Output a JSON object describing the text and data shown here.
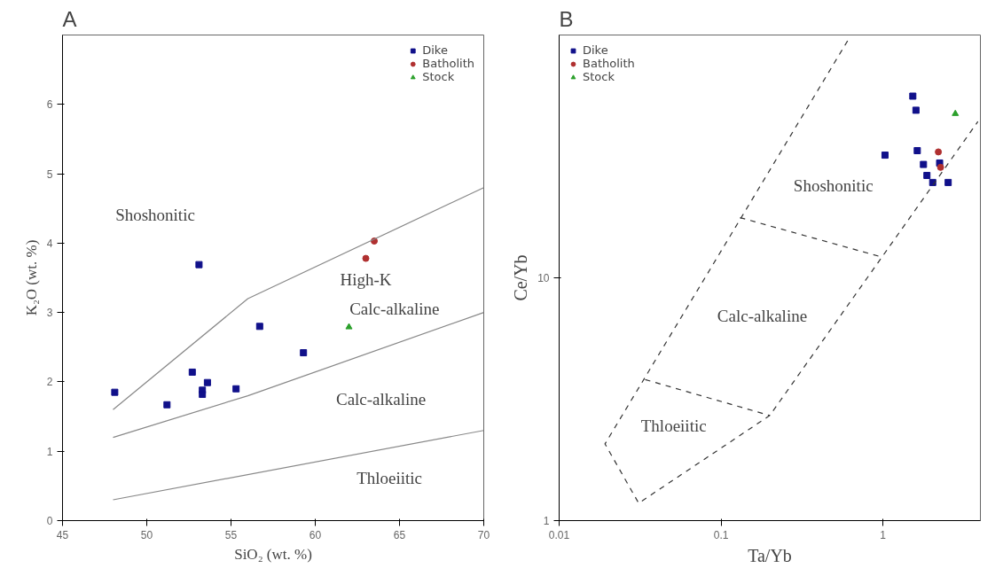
{
  "chart_data": [
    {
      "type": "scatter",
      "title": "A",
      "xlabel": "SiO₂ (wt. %)",
      "ylabel": "K₂O (wt. %)",
      "xlim": [
        45,
        70
      ],
      "ylim": [
        0,
        7
      ],
      "xticks": [
        45,
        50,
        55,
        60,
        65,
        70
      ],
      "yticks": [
        0,
        1,
        2,
        3,
        4,
        5,
        6
      ],
      "grid": false,
      "legend": "top right",
      "series": [
        {
          "name": "Dike",
          "color": "#10108a",
          "marker": "square",
          "x": [
            48.1,
            53.1,
            56.7,
            59.3,
            52.7,
            53.6,
            53.3,
            53.3,
            55.3,
            51.2
          ],
          "values": [
            1.85,
            3.69,
            2.8,
            2.42,
            2.14,
            1.99,
            1.88,
            1.82,
            1.9,
            1.67
          ]
        },
        {
          "name": "Batholith",
          "color": "#b03030",
          "marker": "circle",
          "x": [
            63.5,
            63.0
          ],
          "values": [
            4.03,
            3.78
          ]
        },
        {
          "name": "Stock",
          "color": "#2ca02c",
          "marker": "triangle",
          "x": [
            62.0
          ],
          "values": [
            2.79
          ]
        },
        {
          "type": "line",
          "color": "#888888",
          "line_style": "solid",
          "x": [
            48,
            56,
            70
          ],
          "values": [
            1.6,
            3.2,
            4.8
          ]
        },
        {
          "type": "line",
          "color": "#888888",
          "line_style": "solid",
          "x": [
            48,
            56,
            70
          ],
          "values": [
            1.2,
            1.8,
            3.0
          ]
        },
        {
          "type": "line",
          "color": "#888888",
          "line_style": "solid",
          "x": [
            48,
            70
          ],
          "values": [
            0.3,
            1.3
          ]
        }
      ],
      "annotations": [
        "Shoshonitic",
        "High-K",
        "Calc-alkaline",
        "Calc-alkaline",
        "Thloeiitic"
      ]
    },
    {
      "type": "scatter",
      "title": "B",
      "xlabel": "Ta/Yb",
      "ylabel": "Ce/Yb",
      "log": "xy",
      "xlim": [
        0.01,
        4
      ],
      "ylim": [
        1,
        100
      ],
      "xticks": [
        0.01,
        0.1,
        1
      ],
      "yticks": [
        1,
        10
      ],
      "grid": false,
      "legend": "top left",
      "series": [
        {
          "name": "Dike",
          "color": "#10108a",
          "marker": "square",
          "x": [
            1.53,
            1.6,
            1.03,
            1.63,
            1.78,
            1.87,
            2.03,
            2.24,
            2.53
          ],
          "values": [
            56,
            49,
            32,
            33.4,
            29.3,
            26.4,
            24.7,
            29.7,
            24.7
          ]
        },
        {
          "name": "Batholith",
          "color": "#b03030",
          "marker": "circle",
          "x": [
            2.2,
            2.27
          ],
          "values": [
            33,
            28.5
          ]
        },
        {
          "name": "Stock",
          "color": "#2ca02c",
          "marker": "triangle",
          "x": [
            2.8
          ],
          "values": [
            47.4
          ]
        },
        {
          "type": "line",
          "color": "#333333",
          "line_style": "dashed",
          "x": [
            0.605,
            0.0192,
            0.031,
            0.2,
            3.86
          ],
          "values": [
            94.6,
            2.07,
            1.18,
            2.71,
            44
          ]
        },
        {
          "type": "line",
          "color": "#333333",
          "line_style": "dashed",
          "x": [
            0.131,
            0.975
          ],
          "values": [
            17.7,
            12.2
          ]
        },
        {
          "type": "line",
          "color": "#333333",
          "line_style": "dashed",
          "x": [
            0.034,
            0.2
          ],
          "values": [
            3.81,
            2.71
          ]
        }
      ],
      "annotations": [
        "Shoshonitic",
        "Calc-alkaline",
        "Thloeiitic"
      ]
    }
  ]
}
